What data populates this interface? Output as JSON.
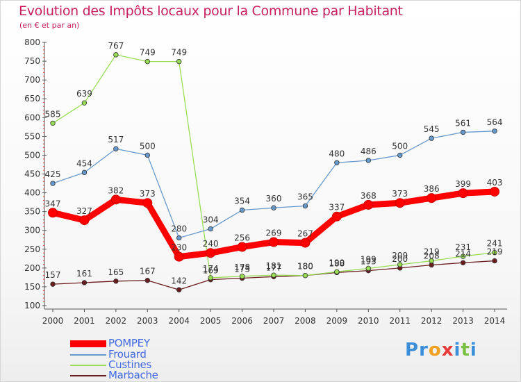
{
  "header": {
    "title": "Evolution des Impôts locaux pour la Commune par Habitant",
    "subtitle": "(en € et par an)"
  },
  "chart_data": {
    "type": "line",
    "title": "Evolution des Impôts locaux pour la Commune par Habitant",
    "subtitle": "(en € et par an)",
    "x": [
      2000,
      2001,
      2002,
      2003,
      2004,
      2005,
      2006,
      2007,
      2008,
      2009,
      2010,
      2011,
      2012,
      2013,
      2014
    ],
    "ylim": [
      100,
      800
    ],
    "yticks": [
      100,
      150,
      200,
      250,
      300,
      350,
      400,
      450,
      500,
      550,
      600,
      650,
      700,
      750,
      800
    ],
    "grid": false,
    "legend_position": "bottom-left",
    "series": [
      {
        "name": "Marbache",
        "color": "#6b1d1d",
        "values": [
          157,
          161,
          165,
          167,
          142,
          169,
          173,
          177,
          180,
          188,
          193,
          200,
          208,
          214,
          219
        ]
      },
      {
        "name": "Custines",
        "color": "#99dd55",
        "values": [
          585,
          639,
          767,
          749,
          749,
          174,
          178,
          181,
          180,
          190,
          199,
          209,
          219,
          231,
          241
        ]
      },
      {
        "name": "Frouard",
        "color": "#6699cc",
        "values": [
          425,
          454,
          517,
          500,
          280,
          304,
          354,
          360,
          365,
          480,
          486,
          500,
          545,
          561,
          564
        ]
      },
      {
        "name": "POMPEY",
        "color": "#ff0000",
        "values": [
          347,
          327,
          382,
          373,
          230,
          240,
          256,
          269,
          267,
          337,
          368,
          373,
          386,
          399,
          403
        ]
      }
    ]
  },
  "legend": [
    {
      "name": "POMPEY",
      "color": "#ff0000"
    },
    {
      "name": "Frouard",
      "color": "#6699cc"
    },
    {
      "name": "Custines",
      "color": "#99dd55"
    },
    {
      "name": "Marbache",
      "color": "#6b1d1d"
    }
  ],
  "logo": {
    "text": "Proxiti",
    "letters": [
      "P",
      "r",
      "o",
      "x",
      "i",
      "t",
      "i"
    ],
    "colors": [
      "#3a8fd8",
      "#3a8fd8",
      "#f0a020",
      "#e83a3a",
      "#3a8fd8",
      "#7ac043",
      "#3a8fd8"
    ]
  }
}
